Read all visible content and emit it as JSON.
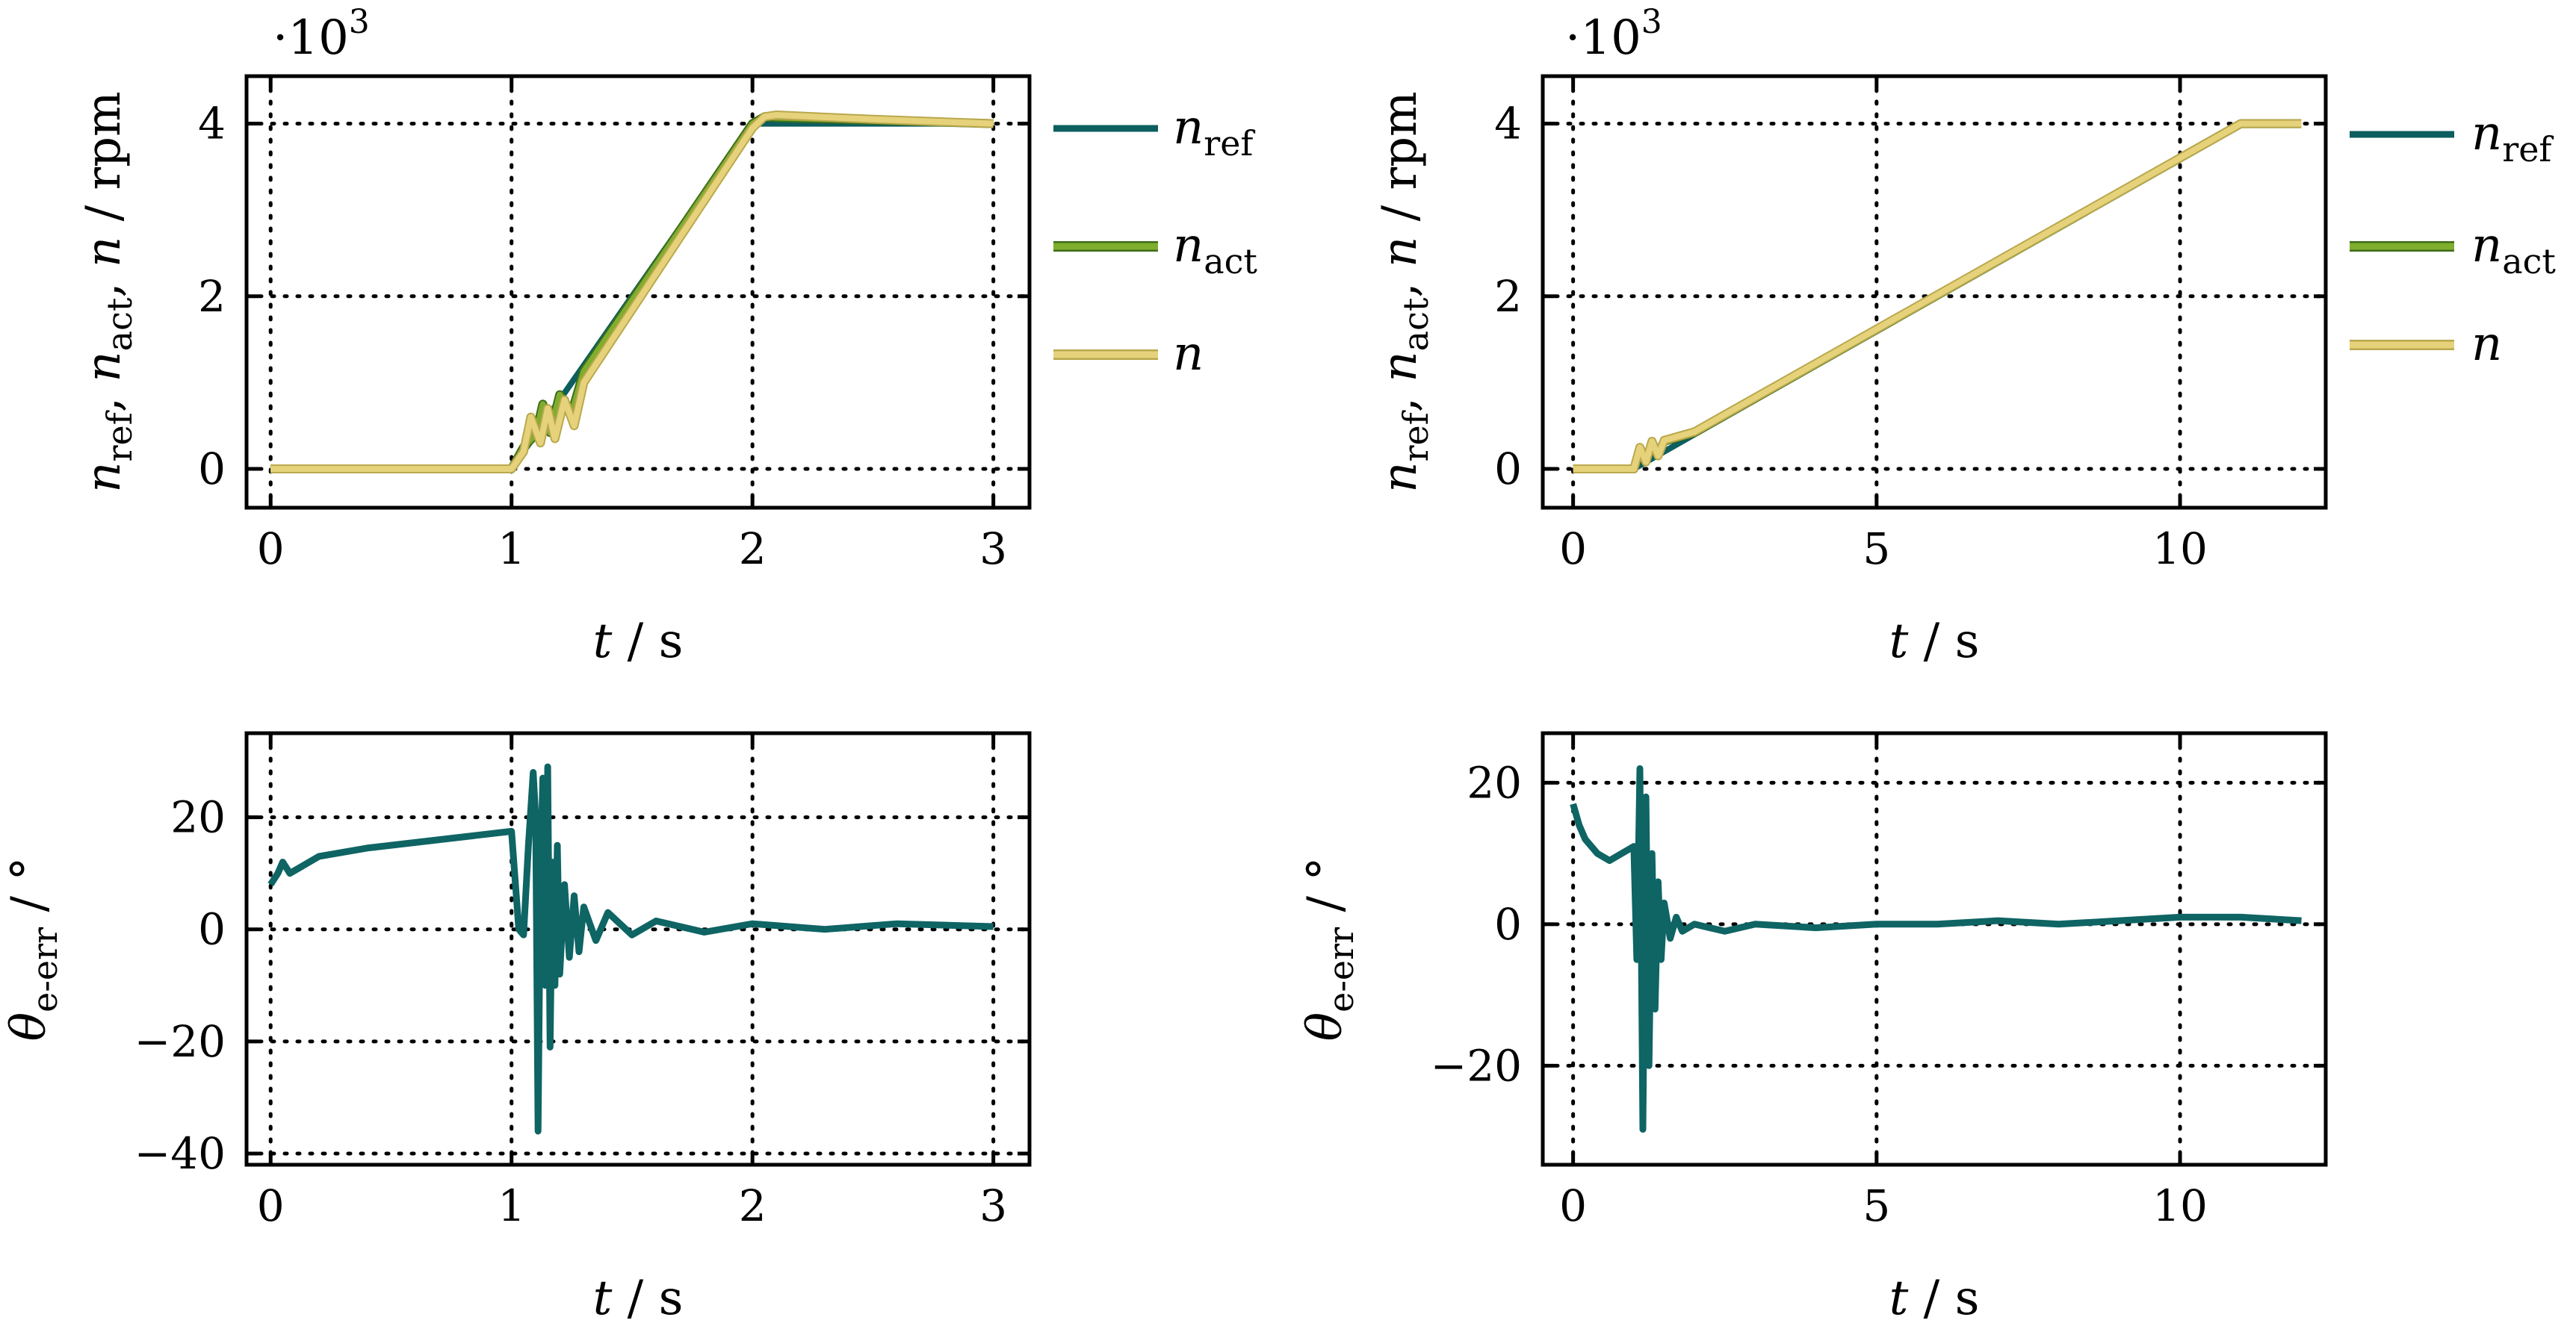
{
  "colors": {
    "n_ref": "#0d5e5e",
    "n_act": "#7fad2e",
    "n_act_edge": "#3f6e1a",
    "n": "#e6d27a",
    "n_edge": "#b9a84e",
    "err": "#0f6464",
    "grid": "#000000"
  },
  "chart_data": [
    {
      "type": "line",
      "id": "top-left",
      "xlabel": {
        "var": "t",
        "unit": "s"
      },
      "ylabel": {
        "base": "n",
        "sub1": "ref",
        "sub2": "act",
        "last": "n",
        "unit": "rpm"
      },
      "multiplier": {
        "base": "·10",
        "exp": "3"
      },
      "xlim": [
        -0.1,
        3.15
      ],
      "ylim": [
        -450,
        4550
      ],
      "xticks": [
        0,
        1,
        2,
        3
      ],
      "xtick_labels": [
        "0",
        "1",
        "2",
        "3"
      ],
      "yticks": [
        0,
        2000,
        4000
      ],
      "ytick_labels": [
        "0",
        "2",
        "4"
      ],
      "grid": true,
      "series": [
        {
          "name": "n_ref",
          "key": "n_ref",
          "x": [
            0,
            1,
            2,
            3
          ],
          "y": [
            0,
            0,
            4000,
            4000
          ]
        },
        {
          "name": "n_act",
          "key": "n_act",
          "x": [
            0,
            1,
            1.05,
            1.1,
            1.13,
            1.16,
            1.2,
            1.25,
            1.3,
            2.0,
            2.05,
            2.1,
            2.5,
            3
          ],
          "y": [
            0,
            0,
            250,
            400,
            750,
            420,
            860,
            650,
            1130,
            4000,
            4080,
            4070,
            4040,
            4000
          ]
        },
        {
          "name": "n",
          "key": "n",
          "x": [
            0,
            1,
            1.05,
            1.08,
            1.12,
            1.15,
            1.18,
            1.22,
            1.26,
            1.3,
            2.0,
            2.05,
            2.1,
            2.5,
            3
          ],
          "y": [
            0,
            0,
            200,
            600,
            300,
            700,
            350,
            800,
            500,
            1000,
            3950,
            4080,
            4100,
            4050,
            4000
          ]
        }
      ],
      "legend": {
        "position": "right",
        "entries": [
          {
            "key": "n_ref",
            "base": "n",
            "sub": "ref"
          },
          {
            "key": "n_act",
            "base": "n",
            "sub": "act"
          },
          {
            "key": "n",
            "base": "n",
            "sub": ""
          }
        ]
      }
    },
    {
      "type": "line",
      "id": "top-right",
      "xlabel": {
        "var": "t",
        "unit": "s"
      },
      "ylabel": {
        "base": "n",
        "sub1": "ref",
        "sub2": "act",
        "last": "n",
        "unit": "rpm"
      },
      "multiplier": {
        "base": "·10",
        "exp": "3"
      },
      "xlim": [
        -0.5,
        12.4
      ],
      "ylim": [
        -450,
        4550
      ],
      "xticks": [
        0,
        5,
        10
      ],
      "xtick_labels": [
        "0",
        "5",
        "10"
      ],
      "yticks": [
        0,
        2000,
        4000
      ],
      "ytick_labels": [
        "0",
        "2",
        "4"
      ],
      "grid": true,
      "series": [
        {
          "name": "n_ref",
          "key": "n_ref",
          "x": [
            0,
            1,
            11,
            12
          ],
          "y": [
            0,
            0,
            4000,
            4000
          ]
        },
        {
          "name": "n_act",
          "key": "n_act",
          "x": [
            0,
            1,
            1.1,
            1.2,
            1.3,
            1.4,
            1.5,
            2,
            11,
            12
          ],
          "y": [
            0,
            0,
            200,
            100,
            300,
            180,
            320,
            420,
            4000,
            4000
          ]
        },
        {
          "name": "n",
          "key": "n",
          "x": [
            0,
            1,
            1.1,
            1.2,
            1.3,
            1.4,
            1.5,
            2,
            11,
            12
          ],
          "y": [
            0,
            0,
            250,
            80,
            320,
            150,
            330,
            430,
            4000,
            4000
          ]
        }
      ],
      "legend": {
        "position": "right",
        "entries": [
          {
            "key": "n_ref",
            "base": "n",
            "sub": "ref"
          },
          {
            "key": "n_act",
            "base": "n",
            "sub": "act"
          },
          {
            "key": "n",
            "base": "n",
            "sub": ""
          }
        ]
      }
    },
    {
      "type": "line",
      "id": "bottom-left",
      "xlabel": {
        "var": "t",
        "unit": "s"
      },
      "ylabel": {
        "base": "θ",
        "sub1": "e-err",
        "unit": "°"
      },
      "xlim": [
        -0.1,
        3.15
      ],
      "ylim": [
        -42,
        35
      ],
      "xticks": [
        0,
        1,
        2,
        3
      ],
      "xtick_labels": [
        "0",
        "1",
        "2",
        "3"
      ],
      "yticks": [
        -40,
        -20,
        0,
        20
      ],
      "ytick_labels": [
        "−40",
        "−20",
        "0",
        "20"
      ],
      "grid": true,
      "series": [
        {
          "name": "θ_e-err",
          "key": "err",
          "x": [
            0,
            0.03,
            0.05,
            0.08,
            0.12,
            0.2,
            0.4,
            0.7,
            1.0,
            1.03,
            1.05,
            1.07,
            1.09,
            1.1,
            1.11,
            1.12,
            1.13,
            1.14,
            1.15,
            1.16,
            1.17,
            1.18,
            1.19,
            1.2,
            1.22,
            1.24,
            1.26,
            1.28,
            1.3,
            1.35,
            1.4,
            1.5,
            1.6,
            1.8,
            2.0,
            2.3,
            2.6,
            3.0
          ],
          "y": [
            8,
            10,
            12,
            10,
            11,
            13,
            14.5,
            16,
            17.5,
            0,
            -1,
            15,
            28,
            20,
            -36,
            10,
            27,
            -10,
            29,
            -21,
            12,
            -10,
            15,
            -8,
            8,
            -5,
            6,
            -4,
            4,
            -2,
            3,
            -1,
            1.5,
            -0.5,
            1,
            0,
            1,
            0.5
          ]
        }
      ]
    },
    {
      "type": "line",
      "id": "bottom-right",
      "xlabel": {
        "var": "t",
        "unit": "s"
      },
      "ylabel": {
        "base": "θ",
        "sub1": "e-err",
        "unit": "°"
      },
      "xlim": [
        -0.5,
        12.4
      ],
      "ylim": [
        -34,
        27
      ],
      "xticks": [
        0,
        5,
        10
      ],
      "xtick_labels": [
        "0",
        "5",
        "10"
      ],
      "yticks": [
        -20,
        0,
        20
      ],
      "ytick_labels": [
        "−20",
        "0",
        "20"
      ],
      "grid": true,
      "series": [
        {
          "name": "θ_e-err",
          "key": "err",
          "x": [
            0,
            0.1,
            0.2,
            0.4,
            0.6,
            0.8,
            1.0,
            1.05,
            1.1,
            1.15,
            1.2,
            1.25,
            1.3,
            1.35,
            1.4,
            1.45,
            1.5,
            1.6,
            1.7,
            1.8,
            2.0,
            2.5,
            3,
            4,
            5,
            6,
            7,
            8,
            9,
            10,
            11,
            12
          ],
          "y": [
            17,
            14,
            12,
            10,
            9,
            10,
            11,
            -5,
            22,
            -29,
            18,
            -20,
            10,
            -12,
            6,
            -5,
            3,
            -2,
            1,
            -1,
            0,
            -1,
            0,
            -0.5,
            0,
            0,
            0.5,
            0,
            0.5,
            1,
            1,
            0.5
          ]
        }
      ]
    }
  ]
}
